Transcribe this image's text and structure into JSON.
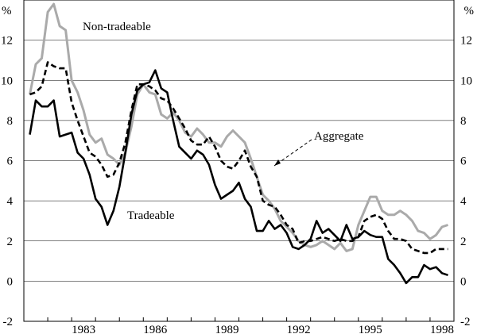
{
  "chart_data": {
    "type": "line",
    "unit_label": "%",
    "ylim": [
      -2,
      14
    ],
    "yticks": [
      -2,
      0,
      2,
      4,
      6,
      8,
      10,
      12
    ],
    "xlim": [
      1981.0,
      1999.0
    ],
    "xticks": [
      {
        "label": "1983",
        "value": 1983.0
      },
      {
        "label": "1986",
        "value": 1986.0
      },
      {
        "label": "1989",
        "value": 1989.0
      },
      {
        "label": "1992",
        "value": 1992.0
      },
      {
        "label": "1995",
        "value": 1995.0
      },
      {
        "label": "1998",
        "value": 1998.0
      }
    ],
    "grid": true,
    "annotations": {
      "non_tradeable": "Non-tradeable",
      "aggregate": "Aggregate",
      "tradeable": "Tradeable"
    },
    "series": [
      {
        "name": "Non-tradeable",
        "color": "#aaaaaa",
        "dash": "solid",
        "x": [
          1981.25,
          1981.5,
          1981.75,
          1982.0,
          1982.25,
          1982.5,
          1982.75,
          1983.0,
          1983.25,
          1983.5,
          1983.75,
          1984.0,
          1984.25,
          1984.5,
          1984.75,
          1985.0,
          1985.25,
          1985.5,
          1985.75,
          1986.0,
          1986.25,
          1986.5,
          1986.75,
          1987.0,
          1987.25,
          1987.5,
          1987.75,
          1988.0,
          1988.25,
          1988.5,
          1988.75,
          1989.0,
          1989.25,
          1989.5,
          1989.75,
          1990.0,
          1990.25,
          1990.5,
          1990.75,
          1991.0,
          1991.25,
          1991.5,
          1991.75,
          1992.0,
          1992.25,
          1992.5,
          1992.75,
          1993.0,
          1993.25,
          1993.5,
          1993.75,
          1994.0,
          1994.25,
          1994.5,
          1994.75,
          1995.0,
          1995.25,
          1995.5,
          1995.75,
          1996.0,
          1996.25,
          1996.5,
          1996.75,
          1997.0,
          1997.25,
          1997.5,
          1997.75,
          1998.0,
          1998.25,
          1998.5,
          1998.75
        ],
        "values": [
          9.3,
          10.8,
          11.1,
          13.4,
          13.8,
          12.7,
          12.5,
          10.0,
          9.4,
          8.5,
          7.3,
          6.9,
          7.1,
          6.3,
          6.1,
          5.8,
          6.4,
          7.7,
          9.3,
          9.8,
          9.4,
          9.3,
          8.3,
          8.1,
          8.4,
          8.0,
          7.4,
          7.2,
          7.6,
          7.3,
          6.9,
          6.9,
          6.7,
          7.2,
          7.5,
          7.2,
          6.9,
          6.1,
          5.2,
          4.3,
          4.0,
          3.6,
          3.0,
          2.7,
          2.4,
          2.0,
          1.8,
          1.7,
          1.8,
          2.0,
          1.8,
          1.6,
          1.9,
          1.5,
          1.6,
          2.8,
          3.5,
          4.2,
          4.2,
          3.5,
          3.3,
          3.3,
          3.5,
          3.3,
          3.0,
          2.5,
          2.4,
          2.1,
          2.3,
          2.7,
          2.8
        ]
      },
      {
        "name": "Aggregate",
        "color": "#000000",
        "dash": "dashed",
        "x": [
          1981.25,
          1981.5,
          1981.75,
          1982.0,
          1982.25,
          1982.5,
          1982.75,
          1983.0,
          1983.25,
          1983.5,
          1983.75,
          1984.0,
          1984.25,
          1984.5,
          1984.75,
          1985.0,
          1985.25,
          1985.5,
          1985.75,
          1986.0,
          1986.25,
          1986.5,
          1986.75,
          1987.0,
          1987.25,
          1987.5,
          1987.75,
          1988.0,
          1988.25,
          1988.5,
          1988.75,
          1989.0,
          1989.25,
          1989.5,
          1989.75,
          1990.0,
          1990.25,
          1990.5,
          1990.75,
          1991.0,
          1991.25,
          1991.5,
          1991.75,
          1992.0,
          1992.25,
          1992.5,
          1992.75,
          1993.0,
          1993.25,
          1993.5,
          1993.75,
          1994.0,
          1994.25,
          1994.5,
          1994.75,
          1995.0,
          1995.25,
          1995.5,
          1995.75,
          1996.0,
          1996.25,
          1996.5,
          1996.75,
          1997.0,
          1997.25,
          1997.5,
          1997.75,
          1998.0,
          1998.25,
          1998.5,
          1998.75
        ],
        "values": [
          9.3,
          9.4,
          9.7,
          10.9,
          10.7,
          10.6,
          10.6,
          8.9,
          8.0,
          7.2,
          6.4,
          6.2,
          5.8,
          5.2,
          5.3,
          5.9,
          6.9,
          8.5,
          9.8,
          9.8,
          9.7,
          9.5,
          9.1,
          9.0,
          8.6,
          8.1,
          7.6,
          7.0,
          6.8,
          6.8,
          7.2,
          6.7,
          6.0,
          5.7,
          5.6,
          6.0,
          6.5,
          5.7,
          5.2,
          4.0,
          3.8,
          3.7,
          3.3,
          2.8,
          2.6,
          1.9,
          2.0,
          2.0,
          2.1,
          2.2,
          2.1,
          2.0,
          2.1,
          2.0,
          2.0,
          2.2,
          3.0,
          3.2,
          3.3,
          3.1,
          2.5,
          2.1,
          2.1,
          2.0,
          1.6,
          1.5,
          1.4,
          1.4,
          1.6,
          1.6,
          1.6
        ]
      },
      {
        "name": "Tradeable",
        "color": "#000000",
        "dash": "solid",
        "x": [
          1981.25,
          1981.5,
          1981.75,
          1982.0,
          1982.25,
          1982.5,
          1982.75,
          1983.0,
          1983.25,
          1983.5,
          1983.75,
          1984.0,
          1984.25,
          1984.5,
          1984.75,
          1985.0,
          1985.25,
          1985.5,
          1985.75,
          1986.0,
          1986.25,
          1986.5,
          1986.75,
          1987.0,
          1987.25,
          1987.5,
          1987.75,
          1988.0,
          1988.25,
          1988.5,
          1988.75,
          1989.0,
          1989.25,
          1989.5,
          1989.75,
          1990.0,
          1990.25,
          1990.5,
          1990.75,
          1991.0,
          1991.25,
          1991.5,
          1991.75,
          1992.0,
          1992.25,
          1992.5,
          1992.75,
          1993.0,
          1993.25,
          1993.5,
          1993.75,
          1994.0,
          1994.25,
          1994.5,
          1994.75,
          1995.0,
          1995.25,
          1995.5,
          1995.75,
          1996.0,
          1996.25,
          1996.5,
          1996.75,
          1997.0,
          1997.25,
          1997.5,
          1997.75,
          1998.0,
          1998.25,
          1998.5,
          1998.75
        ],
        "values": [
          7.3,
          9.0,
          8.7,
          8.7,
          9.0,
          7.2,
          7.3,
          7.4,
          6.4,
          6.1,
          5.3,
          4.1,
          3.7,
          2.8,
          3.5,
          4.7,
          6.4,
          8.3,
          9.5,
          9.8,
          9.9,
          10.5,
          9.6,
          9.4,
          8.0,
          6.7,
          6.4,
          6.1,
          6.5,
          6.3,
          5.8,
          4.8,
          4.1,
          4.3,
          4.5,
          4.9,
          4.1,
          3.7,
          2.5,
          2.5,
          3.0,
          2.6,
          2.8,
          2.4,
          1.7,
          1.6,
          1.8,
          2.1,
          3.0,
          2.4,
          2.6,
          2.3,
          2.0,
          2.8,
          2.1,
          2.2,
          2.5,
          2.3,
          2.2,
          2.2,
          1.1,
          0.8,
          0.4,
          -0.1,
          0.2,
          0.2,
          0.8,
          0.6,
          0.7,
          0.4,
          0.3
        ]
      }
    ]
  }
}
